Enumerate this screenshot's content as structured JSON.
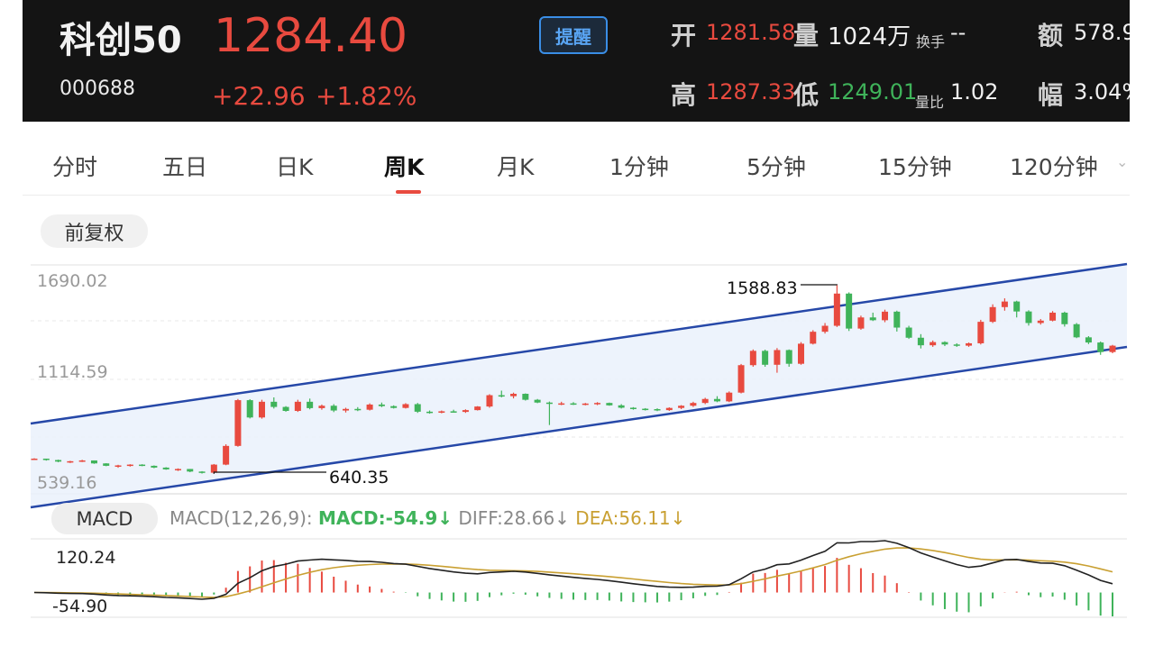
{
  "stock": {
    "name": "科创50",
    "code": "000688",
    "price": "1284.40",
    "change": "+22.96",
    "change_pct": "+1.82%",
    "alert_label": "提醒"
  },
  "stats": {
    "open_label": "开",
    "open": "1281.58",
    "vol_label": "量",
    "vol": "1024万",
    "turnover_label": "换手",
    "turnover": "--",
    "amount_label": "额",
    "amount": "578.9",
    "high_label": "高",
    "high": "1287.33",
    "low_label": "低",
    "low": "1249.01",
    "vr_label": "量比",
    "vr": "1.02",
    "amp_label": "幅",
    "amp": "3.04%"
  },
  "tabs": [
    {
      "label": "分时"
    },
    {
      "label": "五日"
    },
    {
      "label": "日K"
    },
    {
      "label": "周K"
    },
    {
      "label": "月K"
    },
    {
      "label": "1分钟"
    },
    {
      "label": "5分钟"
    },
    {
      "label": "15分钟"
    },
    {
      "label": "120分钟"
    }
  ],
  "active_tab": "周K",
  "adjust_label": "前复权",
  "macd": {
    "button": "MACD",
    "params": "MACD(12,26,9):",
    "macd": "MACD:-54.9↓",
    "diff": "DIFF:28.66↓",
    "dea": "DEA:56.11↓",
    "axis_top": "120.24",
    "axis_bottom": "-54.90"
  },
  "colors": {
    "up": "#e84a3f",
    "down": "#3fb35a",
    "channel": "#2648a8",
    "dea": "#c9a032",
    "diff": "#222222"
  },
  "chart_data": {
    "type": "candlestick",
    "y_axis_labels": [
      "1690.02",
      "1114.59",
      "539.16"
    ],
    "ylim": [
      539.16,
      1690.02
    ],
    "annotations": {
      "high": "1588.83",
      "low": "640.35"
    },
    "candles": [
      [
        714,
        718,
        711,
        716
      ],
      [
        716,
        716,
        706,
        709
      ],
      [
        709,
        711,
        698,
        701
      ],
      [
        701,
        705,
        694,
        703
      ],
      [
        703,
        710,
        699,
        707
      ],
      [
        707,
        707,
        690,
        692
      ],
      [
        692,
        693,
        678,
        680
      ],
      [
        680,
        685,
        670,
        682
      ],
      [
        682,
        688,
        676,
        686
      ],
      [
        686,
        688,
        678,
        680
      ],
      [
        680,
        682,
        668,
        671
      ],
      [
        671,
        673,
        660,
        662
      ],
      [
        662,
        667,
        654,
        664
      ],
      [
        664,
        664,
        648,
        651
      ],
      [
        651,
        653,
        641,
        645
      ],
      [
        645,
        689,
        640,
        686
      ],
      [
        686,
        788,
        683,
        780
      ],
      [
        780,
        1016,
        776,
        1010
      ],
      [
        1010,
        1015,
        918,
        923
      ],
      [
        923,
        1012,
        917,
        1002
      ],
      [
        1002,
        1024,
        968,
        976
      ],
      [
        976,
        980,
        952,
        956
      ],
      [
        956,
        1012,
        951,
        1002
      ],
      [
        1002,
        1018,
        964,
        970
      ],
      [
        970,
        988,
        962,
        982
      ],
      [
        982,
        990,
        950,
        958
      ],
      [
        958,
        972,
        948,
        966
      ],
      [
        966,
        975,
        955,
        962
      ],
      [
        962,
        994,
        958,
        988
      ],
      [
        988,
        998,
        975,
        980
      ],
      [
        980,
        984,
        968,
        971
      ],
      [
        971,
        995,
        968,
        990
      ],
      [
        990,
        996,
        946,
        952
      ],
      [
        952,
        958,
        942,
        947
      ],
      [
        947,
        958,
        944,
        954
      ],
      [
        954,
        962,
        948,
        951
      ],
      [
        951,
        964,
        946,
        960
      ],
      [
        960,
        980,
        958,
        978
      ],
      [
        978,
        1040,
        972,
        1035
      ],
      [
        1035,
        1058,
        1024,
        1030
      ],
      [
        1030,
        1048,
        1019,
        1042
      ],
      [
        1042,
        1044,
        1008,
        1012
      ],
      [
        1012,
        1016,
        995,
        998
      ],
      [
        998,
        1003,
        885,
        992
      ],
      [
        992,
        1002,
        985,
        994
      ],
      [
        994,
        1000,
        986,
        991
      ],
      [
        991,
        996,
        984,
        993
      ],
      [
        993,
        1000,
        985,
        996
      ],
      [
        996,
        998,
        982,
        984
      ],
      [
        984,
        990,
        968,
        972
      ],
      [
        972,
        975,
        962,
        967
      ],
      [
        967,
        970,
        958,
        965
      ],
      [
        965,
        969,
        955,
        960
      ],
      [
        960,
        974,
        956,
        971
      ],
      [
        971,
        985,
        965,
        982
      ],
      [
        982,
        1002,
        976,
        996
      ],
      [
        996,
        1022,
        990,
        1016
      ],
      [
        1016,
        1030,
        1000,
        1004
      ],
      [
        1004,
        1054,
        1000,
        1048
      ],
      [
        1048,
        1192,
        1044,
        1186
      ],
      [
        1186,
        1265,
        1178,
        1258
      ],
      [
        1258,
        1264,
        1178,
        1188
      ],
      [
        1188,
        1272,
        1148,
        1262
      ],
      [
        1262,
        1265,
        1178,
        1193
      ],
      [
        1193,
        1302,
        1188,
        1294
      ],
      [
        1294,
        1362,
        1290,
        1354
      ],
      [
        1354,
        1398,
        1345,
        1384
      ],
      [
        1384,
        1589,
        1378,
        1546
      ],
      [
        1546,
        1552,
        1358,
        1370
      ],
      [
        1370,
        1435,
        1364,
        1426
      ],
      [
        1426,
        1450,
        1408,
        1412
      ],
      [
        1412,
        1465,
        1402,
        1455
      ],
      [
        1455,
        1460,
        1355,
        1375
      ],
      [
        1375,
        1384,
        1318,
        1324
      ],
      [
        1324,
        1342,
        1270,
        1286
      ],
      [
        1286,
        1310,
        1278,
        1302
      ],
      [
        1302,
        1306,
        1282,
        1290
      ],
      [
        1290,
        1296,
        1278,
        1284
      ],
      [
        1284,
        1300,
        1278,
        1296
      ],
      [
        1296,
        1414,
        1290,
        1404
      ],
      [
        1404,
        1492,
        1398,
        1478
      ],
      [
        1478,
        1522,
        1460,
        1506
      ],
      [
        1506,
        1510,
        1426,
        1456
      ],
      [
        1456,
        1462,
        1385,
        1398
      ],
      [
        1398,
        1418,
        1390,
        1410
      ],
      [
        1410,
        1458,
        1406,
        1450
      ],
      [
        1450,
        1455,
        1380,
        1392
      ],
      [
        1392,
        1398,
        1322,
        1326
      ],
      [
        1326,
        1332,
        1292,
        1300
      ],
      [
        1300,
        1305,
        1238,
        1252
      ],
      [
        1252,
        1288,
        1246,
        1284
      ]
    ]
  }
}
